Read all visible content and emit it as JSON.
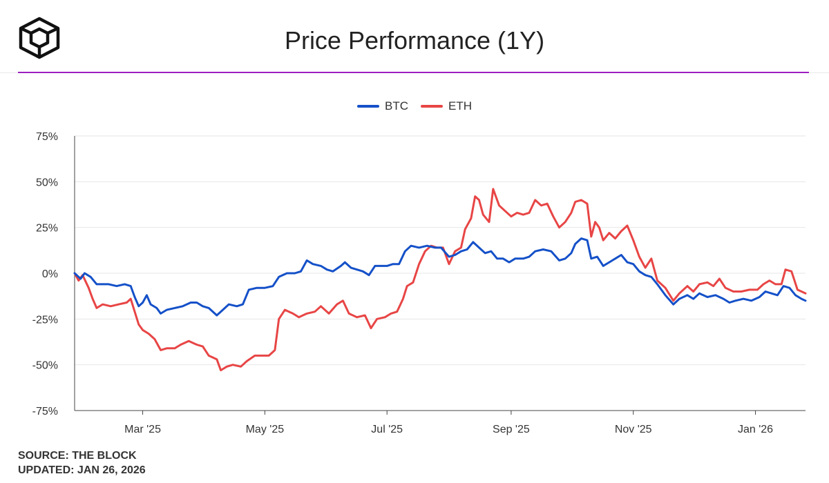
{
  "header": {
    "title": "Price Performance (1Y)",
    "logo_icon": "the-block-cube-logo-icon"
  },
  "colors": {
    "accent_rule": "#9b1fc0",
    "btc": "#1450c8",
    "eth": "#e84545",
    "grid": "#e6e6e6",
    "axis": "#444444"
  },
  "chart_data": {
    "type": "line",
    "title": "Price Performance (1Y)",
    "xlabel": "",
    "ylabel": "",
    "ylim": [
      -75,
      75
    ],
    "yticks": [
      75,
      50,
      25,
      0,
      -25,
      -50,
      -75
    ],
    "ytick_labels": [
      "75%",
      "50%",
      "25%",
      "0%",
      "-25%",
      "-50%",
      "-75%"
    ],
    "xlim": [
      "2025-01-26",
      "2026-01-26"
    ],
    "xticks": [
      "2025-03-01",
      "2025-05-01",
      "2025-07-01",
      "2025-09-01",
      "2025-11-01",
      "2026-01-01"
    ],
    "xtick_labels": [
      "Mar '25",
      "May '25",
      "Jul '25",
      "Sep '25",
      "Nov '25",
      "Jan '26"
    ],
    "grid": true,
    "legend": "top-center",
    "series": [
      {
        "name": "BTC",
        "points": [
          [
            "2025-01-26",
            0
          ],
          [
            "2025-01-29",
            -3
          ],
          [
            "2025-01-31",
            0
          ],
          [
            "2025-02-03",
            -2
          ],
          [
            "2025-02-06",
            -6
          ],
          [
            "2025-02-12",
            -6
          ],
          [
            "2025-02-16",
            -7
          ],
          [
            "2025-02-20",
            -6
          ],
          [
            "2025-02-23",
            -7
          ],
          [
            "2025-02-25",
            -13
          ],
          [
            "2025-02-27",
            -18
          ],
          [
            "2025-03-01",
            -16
          ],
          [
            "2025-03-03",
            -12
          ],
          [
            "2025-03-05",
            -17
          ],
          [
            "2025-03-08",
            -19
          ],
          [
            "2025-03-10",
            -22
          ],
          [
            "2025-03-13",
            -20
          ],
          [
            "2025-03-17",
            -19
          ],
          [
            "2025-03-21",
            -18
          ],
          [
            "2025-03-25",
            -16
          ],
          [
            "2025-03-28",
            -16
          ],
          [
            "2025-03-31",
            -18
          ],
          [
            "2025-04-03",
            -19
          ],
          [
            "2025-04-07",
            -23
          ],
          [
            "2025-04-10",
            -20
          ],
          [
            "2025-04-13",
            -17
          ],
          [
            "2025-04-17",
            -18
          ],
          [
            "2025-04-20",
            -17
          ],
          [
            "2025-04-23",
            -9
          ],
          [
            "2025-04-27",
            -8
          ],
          [
            "2025-05-01",
            -8
          ],
          [
            "2025-05-05",
            -7
          ],
          [
            "2025-05-08",
            -2
          ],
          [
            "2025-05-12",
            0
          ],
          [
            "2025-05-16",
            0
          ],
          [
            "2025-05-19",
            1
          ],
          [
            "2025-05-22",
            7
          ],
          [
            "2025-05-25",
            5
          ],
          [
            "2025-05-29",
            4
          ],
          [
            "2025-06-01",
            2
          ],
          [
            "2025-06-04",
            1
          ],
          [
            "2025-06-08",
            4
          ],
          [
            "2025-06-10",
            6
          ],
          [
            "2025-06-13",
            3
          ],
          [
            "2025-06-16",
            2
          ],
          [
            "2025-06-19",
            1
          ],
          [
            "2025-06-22",
            -1
          ],
          [
            "2025-06-25",
            4
          ],
          [
            "2025-06-28",
            4
          ],
          [
            "2025-07-01",
            4
          ],
          [
            "2025-07-04",
            5
          ],
          [
            "2025-07-07",
            5
          ],
          [
            "2025-07-10",
            12
          ],
          [
            "2025-07-13",
            15
          ],
          [
            "2025-07-17",
            14
          ],
          [
            "2025-07-21",
            15
          ],
          [
            "2025-07-25",
            14
          ],
          [
            "2025-07-28",
            14
          ],
          [
            "2025-08-01",
            9
          ],
          [
            "2025-08-04",
            10
          ],
          [
            "2025-08-07",
            12
          ],
          [
            "2025-08-10",
            13
          ],
          [
            "2025-08-13",
            17
          ],
          [
            "2025-08-16",
            14
          ],
          [
            "2025-08-19",
            11
          ],
          [
            "2025-08-22",
            12
          ],
          [
            "2025-08-25",
            8
          ],
          [
            "2025-08-28",
            8
          ],
          [
            "2025-08-31",
            6
          ],
          [
            "2025-09-03",
            8
          ],
          [
            "2025-09-07",
            8
          ],
          [
            "2025-09-10",
            9
          ],
          [
            "2025-09-13",
            12
          ],
          [
            "2025-09-17",
            13
          ],
          [
            "2025-09-21",
            12
          ],
          [
            "2025-09-25",
            7
          ],
          [
            "2025-09-28",
            8
          ],
          [
            "2025-10-01",
            11
          ],
          [
            "2025-10-03",
            16
          ],
          [
            "2025-10-06",
            19
          ],
          [
            "2025-10-09",
            18
          ],
          [
            "2025-10-11",
            8
          ],
          [
            "2025-10-14",
            9
          ],
          [
            "2025-10-17",
            4
          ],
          [
            "2025-10-20",
            6
          ],
          [
            "2025-10-23",
            8
          ],
          [
            "2025-10-26",
            10
          ],
          [
            "2025-10-29",
            6
          ],
          [
            "2025-11-01",
            5
          ],
          [
            "2025-11-04",
            1
          ],
          [
            "2025-11-07",
            -1
          ],
          [
            "2025-11-10",
            -2
          ],
          [
            "2025-11-13",
            -6
          ],
          [
            "2025-11-17",
            -12
          ],
          [
            "2025-11-21",
            -17
          ],
          [
            "2025-11-24",
            -14
          ],
          [
            "2025-11-28",
            -12
          ],
          [
            "2025-12-01",
            -14
          ],
          [
            "2025-12-04",
            -11
          ],
          [
            "2025-12-08",
            -13
          ],
          [
            "2025-12-12",
            -12
          ],
          [
            "2025-12-16",
            -14
          ],
          [
            "2025-12-19",
            -16
          ],
          [
            "2025-12-22",
            -15
          ],
          [
            "2025-12-26",
            -14
          ],
          [
            "2025-12-30",
            -15
          ],
          [
            "2026-01-03",
            -13
          ],
          [
            "2026-01-06",
            -10
          ],
          [
            "2026-01-09",
            -11
          ],
          [
            "2026-01-12",
            -12
          ],
          [
            "2026-01-15",
            -7
          ],
          [
            "2026-01-18",
            -8
          ],
          [
            "2026-01-21",
            -12
          ],
          [
            "2026-01-24",
            -14
          ],
          [
            "2026-01-26",
            -15
          ]
        ]
      },
      {
        "name": "ETH",
        "points": [
          [
            "2025-01-26",
            0
          ],
          [
            "2025-01-28",
            -4
          ],
          [
            "2025-01-30",
            -1
          ],
          [
            "2025-02-02",
            -8
          ],
          [
            "2025-02-04",
            -14
          ],
          [
            "2025-02-06",
            -19
          ],
          [
            "2025-02-09",
            -17
          ],
          [
            "2025-02-13",
            -18
          ],
          [
            "2025-02-17",
            -17
          ],
          [
            "2025-02-21",
            -16
          ],
          [
            "2025-02-23",
            -14
          ],
          [
            "2025-02-25",
            -21
          ],
          [
            "2025-02-27",
            -28
          ],
          [
            "2025-03-01",
            -31
          ],
          [
            "2025-03-04",
            -33
          ],
          [
            "2025-03-07",
            -36
          ],
          [
            "2025-03-10",
            -42
          ],
          [
            "2025-03-13",
            -41
          ],
          [
            "2025-03-17",
            -41
          ],
          [
            "2025-03-20",
            -39
          ],
          [
            "2025-03-24",
            -37
          ],
          [
            "2025-03-28",
            -39
          ],
          [
            "2025-03-31",
            -40
          ],
          [
            "2025-04-03",
            -45
          ],
          [
            "2025-04-07",
            -47
          ],
          [
            "2025-04-09",
            -53
          ],
          [
            "2025-04-12",
            -51
          ],
          [
            "2025-04-15",
            -50
          ],
          [
            "2025-04-19",
            -51
          ],
          [
            "2025-04-22",
            -48
          ],
          [
            "2025-04-26",
            -45
          ],
          [
            "2025-04-30",
            -45
          ],
          [
            "2025-05-03",
            -45
          ],
          [
            "2025-05-06",
            -42
          ],
          [
            "2025-05-08",
            -25
          ],
          [
            "2025-05-11",
            -20
          ],
          [
            "2025-05-15",
            -22
          ],
          [
            "2025-05-18",
            -24
          ],
          [
            "2025-05-22",
            -22
          ],
          [
            "2025-05-26",
            -21
          ],
          [
            "2025-05-29",
            -18
          ],
          [
            "2025-06-02",
            -22
          ],
          [
            "2025-06-06",
            -17
          ],
          [
            "2025-06-09",
            -15
          ],
          [
            "2025-06-12",
            -22
          ],
          [
            "2025-06-16",
            -24
          ],
          [
            "2025-06-20",
            -23
          ],
          [
            "2025-06-23",
            -30
          ],
          [
            "2025-06-26",
            -25
          ],
          [
            "2025-06-30",
            -24
          ],
          [
            "2025-07-03",
            -22
          ],
          [
            "2025-07-06",
            -21
          ],
          [
            "2025-07-09",
            -14
          ],
          [
            "2025-07-11",
            -7
          ],
          [
            "2025-07-14",
            -5
          ],
          [
            "2025-07-17",
            5
          ],
          [
            "2025-07-20",
            12
          ],
          [
            "2025-07-23",
            15
          ],
          [
            "2025-07-26",
            14
          ],
          [
            "2025-07-29",
            14
          ],
          [
            "2025-08-01",
            5
          ],
          [
            "2025-08-04",
            12
          ],
          [
            "2025-08-07",
            14
          ],
          [
            "2025-08-09",
            24
          ],
          [
            "2025-08-12",
            30
          ],
          [
            "2025-08-14",
            42
          ],
          [
            "2025-08-16",
            40
          ],
          [
            "2025-08-18",
            32
          ],
          [
            "2025-08-21",
            28
          ],
          [
            "2025-08-23",
            46
          ],
          [
            "2025-08-26",
            37
          ],
          [
            "2025-08-29",
            34
          ],
          [
            "2025-09-01",
            31
          ],
          [
            "2025-09-04",
            33
          ],
          [
            "2025-09-07",
            32
          ],
          [
            "2025-09-10",
            33
          ],
          [
            "2025-09-13",
            40
          ],
          [
            "2025-09-16",
            37
          ],
          [
            "2025-09-19",
            38
          ],
          [
            "2025-09-22",
            31
          ],
          [
            "2025-09-25",
            25
          ],
          [
            "2025-09-28",
            28
          ],
          [
            "2025-10-01",
            33
          ],
          [
            "2025-10-03",
            39
          ],
          [
            "2025-10-06",
            40
          ],
          [
            "2025-10-09",
            38
          ],
          [
            "2025-10-11",
            20
          ],
          [
            "2025-10-13",
            28
          ],
          [
            "2025-10-15",
            25
          ],
          [
            "2025-10-17",
            18
          ],
          [
            "2025-10-20",
            22
          ],
          [
            "2025-10-23",
            19
          ],
          [
            "2025-10-26",
            23
          ],
          [
            "2025-10-29",
            26
          ],
          [
            "2025-11-01",
            18
          ],
          [
            "2025-11-04",
            9
          ],
          [
            "2025-11-07",
            3
          ],
          [
            "2025-11-10",
            8
          ],
          [
            "2025-11-13",
            -4
          ],
          [
            "2025-11-17",
            -8
          ],
          [
            "2025-11-21",
            -15
          ],
          [
            "2025-11-24",
            -11
          ],
          [
            "2025-11-28",
            -7
          ],
          [
            "2025-12-01",
            -10
          ],
          [
            "2025-12-04",
            -6
          ],
          [
            "2025-12-08",
            -5
          ],
          [
            "2025-12-11",
            -7
          ],
          [
            "2025-12-14",
            -3
          ],
          [
            "2025-12-17",
            -8
          ],
          [
            "2025-12-21",
            -10
          ],
          [
            "2025-12-25",
            -10
          ],
          [
            "2025-12-29",
            -9
          ],
          [
            "2026-01-02",
            -9
          ],
          [
            "2026-01-05",
            -6
          ],
          [
            "2026-01-08",
            -4
          ],
          [
            "2026-01-11",
            -6
          ],
          [
            "2026-01-14",
            -6
          ],
          [
            "2026-01-16",
            2
          ],
          [
            "2026-01-19",
            1
          ],
          [
            "2026-01-22",
            -9
          ],
          [
            "2026-01-24",
            -10
          ],
          [
            "2026-01-26",
            -11
          ]
        ]
      }
    ]
  },
  "legend": {
    "items": [
      {
        "label": "BTC"
      },
      {
        "label": "ETH"
      }
    ]
  },
  "footer": {
    "source": "SOURCE: THE BLOCK",
    "updated": "UPDATED: JAN 26, 2026"
  }
}
